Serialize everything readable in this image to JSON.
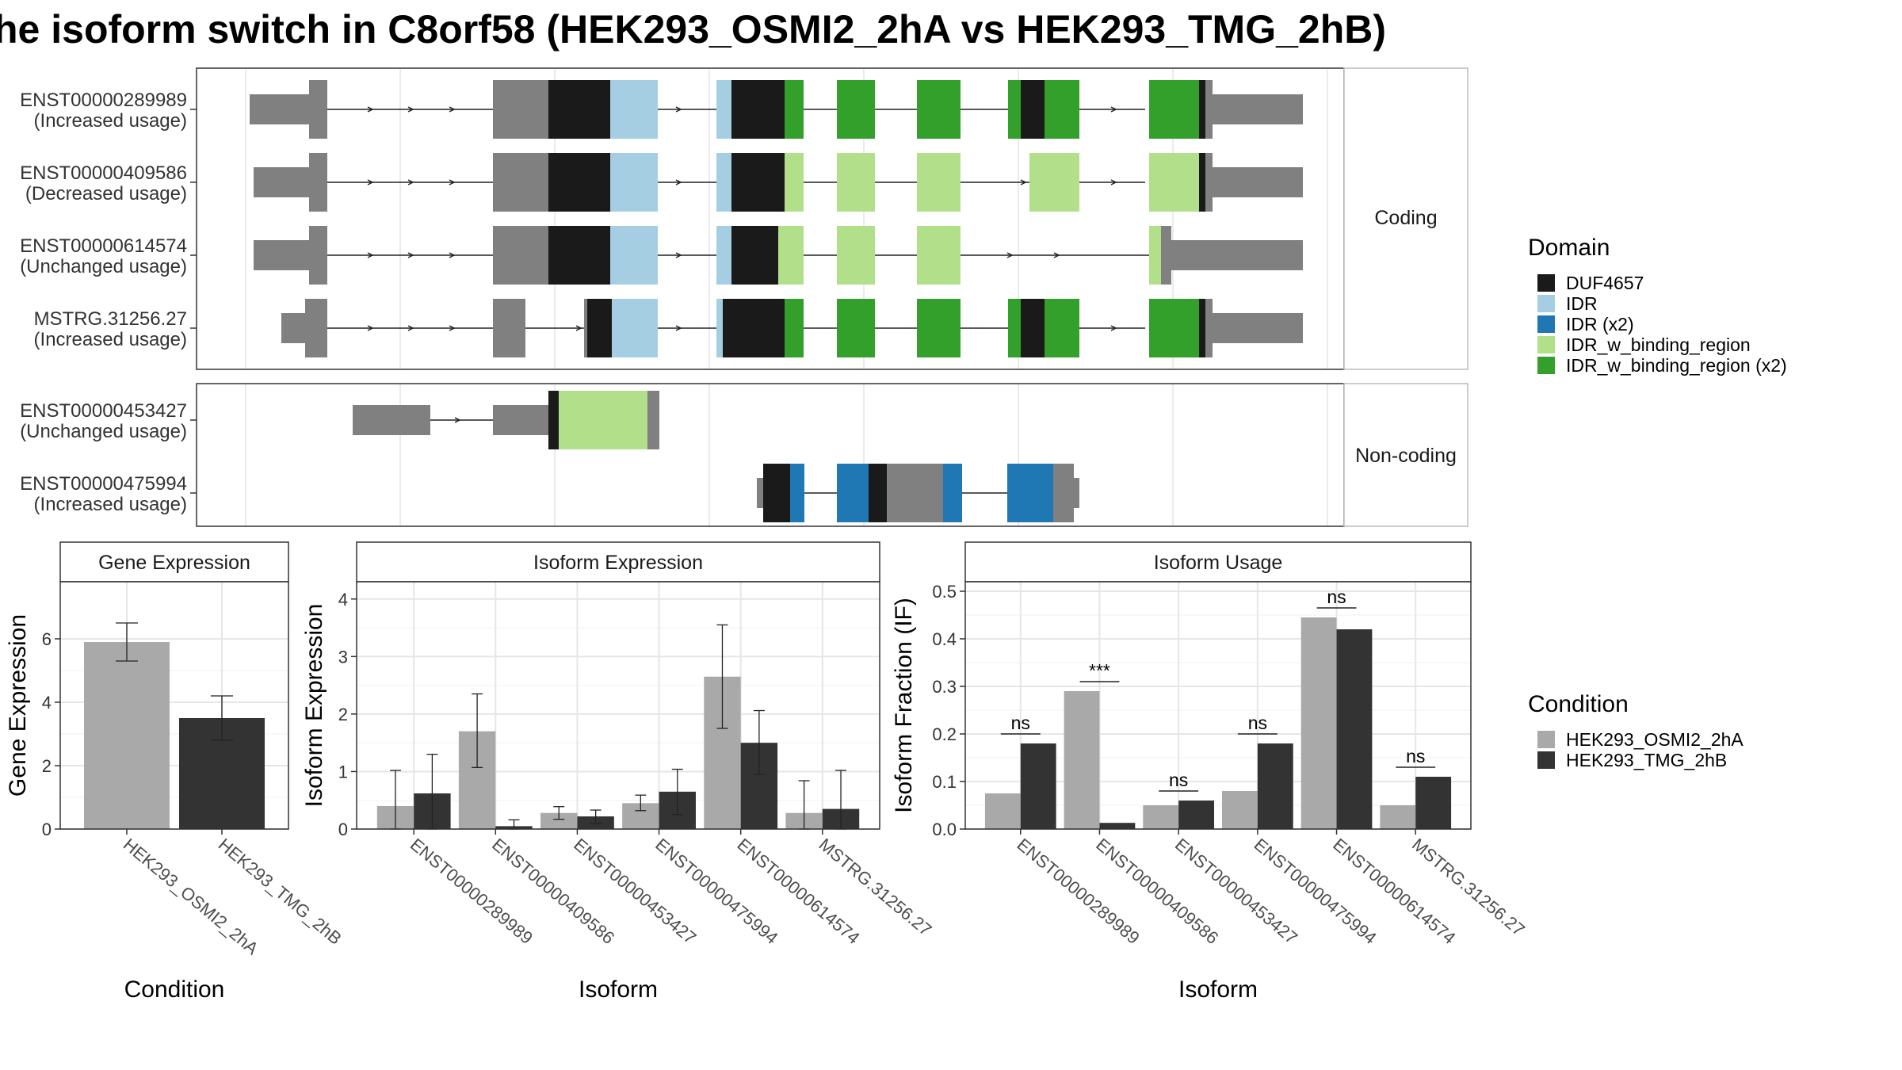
{
  "title": "he isoform switch in C8orf58 (HEK293_OSMI2_2hA vs HEK293_TMG_2hB)",
  "colors": {
    "utr": "#808080",
    "DUF4657": "#1a1a1a",
    "IDR": "#a6cee3",
    "IDR (x2)": "#1f78b4",
    "IDR_w_binding_region": "#b2df8a",
    "IDR_w_binding_region (x2)": "#33a02c",
    "cond_a": "#a9a9a9",
    "cond_b": "#333333"
  },
  "structure": {
    "facets": [
      "Coding",
      "Non-coding"
    ],
    "coding": [
      {
        "id": "ENST00000289989",
        "usage": "(Increased usage)"
      },
      {
        "id": "ENST00000409586",
        "usage": "(Decreased usage)"
      },
      {
        "id": "ENST00000614574",
        "usage": "(Unchanged usage)"
      },
      {
        "id": "MSTRG.31256.27",
        "usage": "(Increased usage)"
      }
    ],
    "noncoding": [
      {
        "id": "ENST00000453427",
        "usage": "(Unchanged usage)"
      },
      {
        "id": "ENST00000475994",
        "usage": "(Increased usage)"
      }
    ]
  },
  "legend_domain": {
    "title": "Domain",
    "items": [
      "DUF4657",
      "IDR",
      "IDR (x2)",
      "IDR_w_binding_region",
      "IDR_w_binding_region (x2)"
    ]
  },
  "legend_condition": {
    "title": "Condition",
    "items": [
      "HEK293_OSMI2_2hA",
      "HEK293_TMG_2hB"
    ]
  },
  "chart_data": [
    {
      "type": "bar",
      "title": "Gene Expression",
      "xlabel": "Condition",
      "ylabel": "Gene Expression",
      "categories": [
        "HEK293_OSMI2_2hA",
        "HEK293_TMG_2hB"
      ],
      "values": [
        5.9,
        3.5
      ],
      "errors": [
        [
          5.3,
          6.5
        ],
        [
          2.8,
          4.2
        ]
      ],
      "yticks": [
        "0",
        "2",
        "4",
        "6"
      ],
      "ylim": [
        0,
        7.8
      ]
    },
    {
      "type": "bar",
      "title": "Isoform Expression",
      "xlabel": "Isoform",
      "ylabel": "Isoform Expression",
      "categories": [
        "ENST00000289989",
        "ENST00000409586",
        "ENST00000453427",
        "ENST00000475994",
        "ENST00000614574",
        "MSTRG.31256.27"
      ],
      "series": [
        {
          "name": "HEK293_OSMI2_2hA",
          "values": [
            0.4,
            1.7,
            0.28,
            0.45,
            2.65,
            0.28
          ],
          "errors": [
            [
              0.0,
              1.02
            ],
            [
              1.07,
              2.35
            ],
            [
              0.17,
              0.39
            ],
            [
              0.32,
              0.59
            ],
            [
              1.75,
              3.55
            ],
            [
              0.0,
              0.84
            ]
          ]
        },
        {
          "name": "HEK293_TMG_2hB",
          "values": [
            0.62,
            0.05,
            0.22,
            0.65,
            1.5,
            0.35
          ],
          "errors": [
            [
              0.0,
              1.3
            ],
            [
              0.0,
              0.16
            ],
            [
              0.1,
              0.33
            ],
            [
              0.25,
              1.04
            ],
            [
              0.95,
              2.06
            ],
            [
              0.0,
              1.02
            ]
          ]
        }
      ],
      "yticks": [
        "0",
        "1",
        "2",
        "3",
        "4"
      ],
      "ylim": [
        0,
        4.3
      ]
    },
    {
      "type": "bar",
      "title": "Isoform Usage",
      "xlabel": "Isoform",
      "ylabel": "Isoform Fraction (IF)",
      "categories": [
        "ENST00000289989",
        "ENST00000409586",
        "ENST00000453427",
        "ENST00000475994",
        "ENST00000614574",
        "MSTRG.31256.27"
      ],
      "series": [
        {
          "name": "HEK293_OSMI2_2hA",
          "values": [
            0.075,
            0.29,
            0.05,
            0.08,
            0.445,
            0.05
          ]
        },
        {
          "name": "HEK293_TMG_2hB",
          "values": [
            0.18,
            0.013,
            0.06,
            0.18,
            0.42,
            0.11
          ]
        }
      ],
      "significance": [
        "ns",
        "***",
        "ns",
        "ns",
        "ns",
        "ns"
      ],
      "yticks": [
        "0.0",
        "0.1",
        "0.2",
        "0.3",
        "0.4",
        "0.5"
      ],
      "ylim": [
        0,
        0.52
      ]
    }
  ]
}
